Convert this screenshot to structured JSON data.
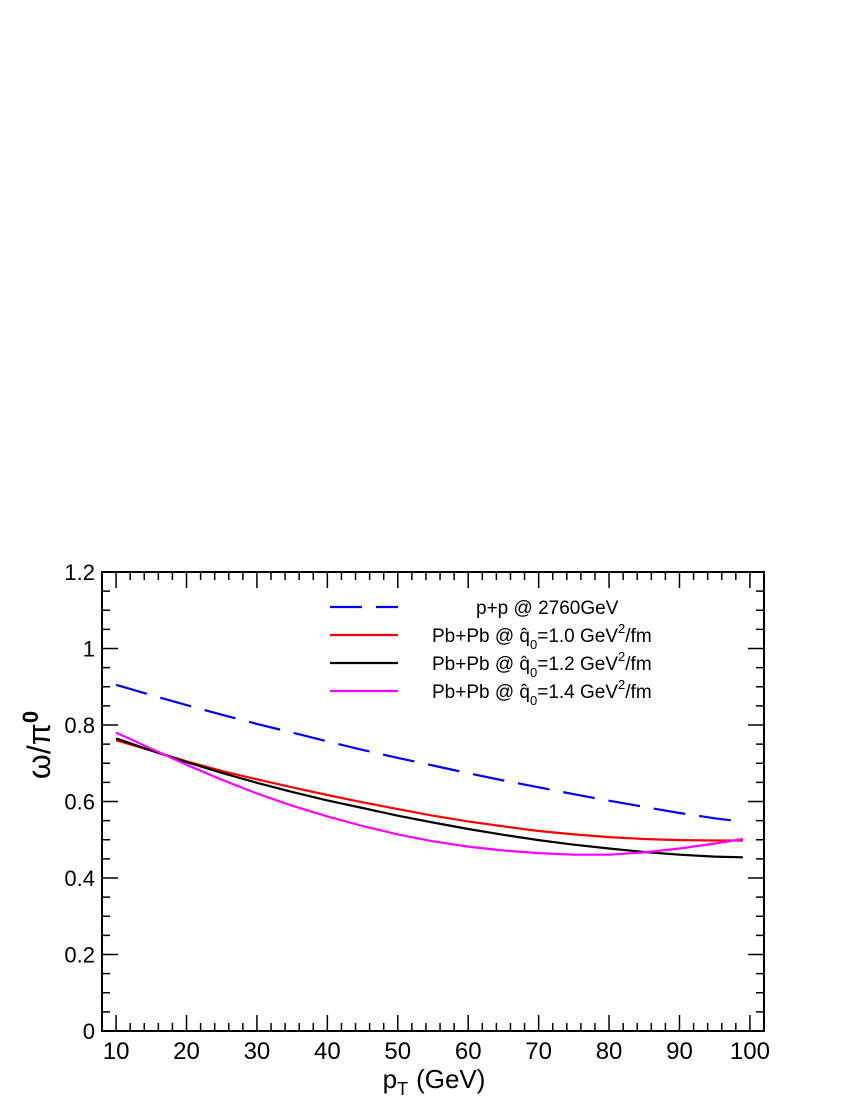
{
  "chart_data": {
    "type": "line",
    "title": "",
    "xlabel": "p_T (GeV)",
    "xlabel_main": "p",
    "xlabel_sub": "T",
    "xlabel_unit": "(GeV)",
    "ylabel": "ω/π^0",
    "ylabel_main": "ω/π",
    "ylabel_sup": "0",
    "xlim": [
      8,
      102
    ],
    "ylim": [
      0,
      1.2
    ],
    "x_ticks": [
      10,
      20,
      30,
      40,
      50,
      60,
      70,
      80,
      90,
      100
    ],
    "y_ticks": [
      0,
      0.2,
      0.4,
      0.6,
      0.8,
      1,
      1.2
    ],
    "x_tick_labels": [
      "10",
      "20",
      "30",
      "40",
      "50",
      "60",
      "70",
      "80",
      "90",
      "100"
    ],
    "y_tick_labels": [
      "0",
      "0.2",
      "0.4",
      "0.6",
      "0.8",
      "1",
      "1.2"
    ],
    "grid": false,
    "legend_position": "top-right",
    "x": [
      10,
      15,
      20,
      25,
      30,
      35,
      40,
      45,
      50,
      55,
      60,
      65,
      70,
      75,
      80,
      85,
      90,
      95,
      99
    ],
    "series": [
      {
        "name": "p+p @ 2760GeV",
        "label_parts": [
          "p+p @ 2760GeV"
        ],
        "color": "#0000ff",
        "dash": "long-dash",
        "values": [
          0.905,
          0.878,
          0.852,
          0.827,
          0.803,
          0.78,
          0.757,
          0.735,
          0.714,
          0.694,
          0.674,
          0.655,
          0.637,
          0.619,
          0.602,
          0.586,
          0.57,
          0.556,
          0.547
        ]
      },
      {
        "name": "Pb+Pb @ q̂0=1.0 GeV2/fm",
        "label_parts": [
          "Pb+Pb @ ",
          "q̂",
          "0",
          "=1.0 GeV",
          "2",
          "/fm"
        ],
        "color": "#ff0000",
        "dash": "solid",
        "values": [
          0.76,
          0.733,
          0.705,
          0.68,
          0.658,
          0.637,
          0.617,
          0.598,
          0.58,
          0.563,
          0.548,
          0.535,
          0.523,
          0.514,
          0.507,
          0.502,
          0.499,
          0.498,
          0.498
        ]
      },
      {
        "name": "Pb+Pb @ q̂0=1.2 GeV2/fm",
        "label_parts": [
          "Pb+Pb @ ",
          "q̂",
          "0",
          "=1.2 GeV",
          "2",
          "/fm"
        ],
        "color": "#000000",
        "dash": "solid",
        "values": [
          0.765,
          0.733,
          0.703,
          0.675,
          0.649,
          0.625,
          0.603,
          0.583,
          0.563,
          0.545,
          0.528,
          0.513,
          0.499,
          0.487,
          0.477,
          0.468,
          0.461,
          0.456,
          0.454
        ]
      },
      {
        "name": "Pb+Pb @ q̂0=1.4 GeV2/fm",
        "label_parts": [
          "Pb+Pb @ ",
          "q̂",
          "0",
          "=1.4 GeV",
          "2",
          "/fm"
        ],
        "color": "#ff00ff",
        "dash": "solid",
        "values": [
          0.78,
          0.738,
          0.696,
          0.657,
          0.621,
          0.589,
          0.561,
          0.536,
          0.514,
          0.496,
          0.482,
          0.472,
          0.465,
          0.461,
          0.461,
          0.467,
          0.477,
          0.49,
          0.502
        ]
      }
    ]
  }
}
